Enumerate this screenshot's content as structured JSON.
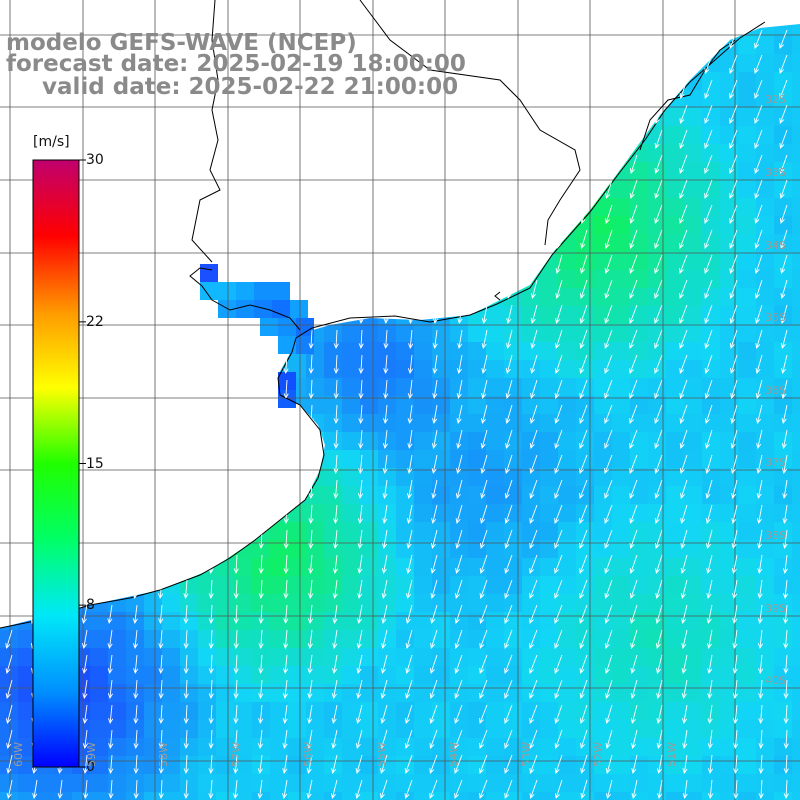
{
  "header": {
    "line1": "modelo GEFS-WAVE (NCEP)",
    "line2": "forecast date: 2025-02-19 18:00:00",
    "line3": "valid date: 2025-02-22 21:00:00"
  },
  "colorbar": {
    "unit": "[m/s]",
    "ticks": [
      "30",
      "22",
      "15",
      "8",
      "0"
    ],
    "tick_values": [
      30,
      22,
      15,
      8,
      0
    ],
    "min": 0,
    "max": 30,
    "colors": [
      "#0000ff",
      "#0090ff",
      "#00e8f8",
      "#00ff66",
      "#20ff00",
      "#ffff00",
      "#ff9900",
      "#ff0000",
      "#c0006e"
    ]
  },
  "grid": {
    "lat_labels": [
      "32S",
      "33S",
      "34S",
      "35S",
      "36S",
      "37S",
      "38S",
      "39S",
      "40S"
    ],
    "lon_labels": [
      "60W",
      "59W",
      "58W",
      "57W",
      "56W",
      "55W",
      "54W",
      "53W",
      "52W",
      "51W"
    ]
  },
  "field": {
    "variable": "wind",
    "vector_direction": "southward to south-southwest",
    "ocean_color_low": "#1a3cff",
    "ocean_color_mid": "#12d6f6",
    "ocean_color_high": "#10f060",
    "land_color": "#ffffff",
    "coast_color": "#000000",
    "vector_color": "#ffffff"
  }
}
